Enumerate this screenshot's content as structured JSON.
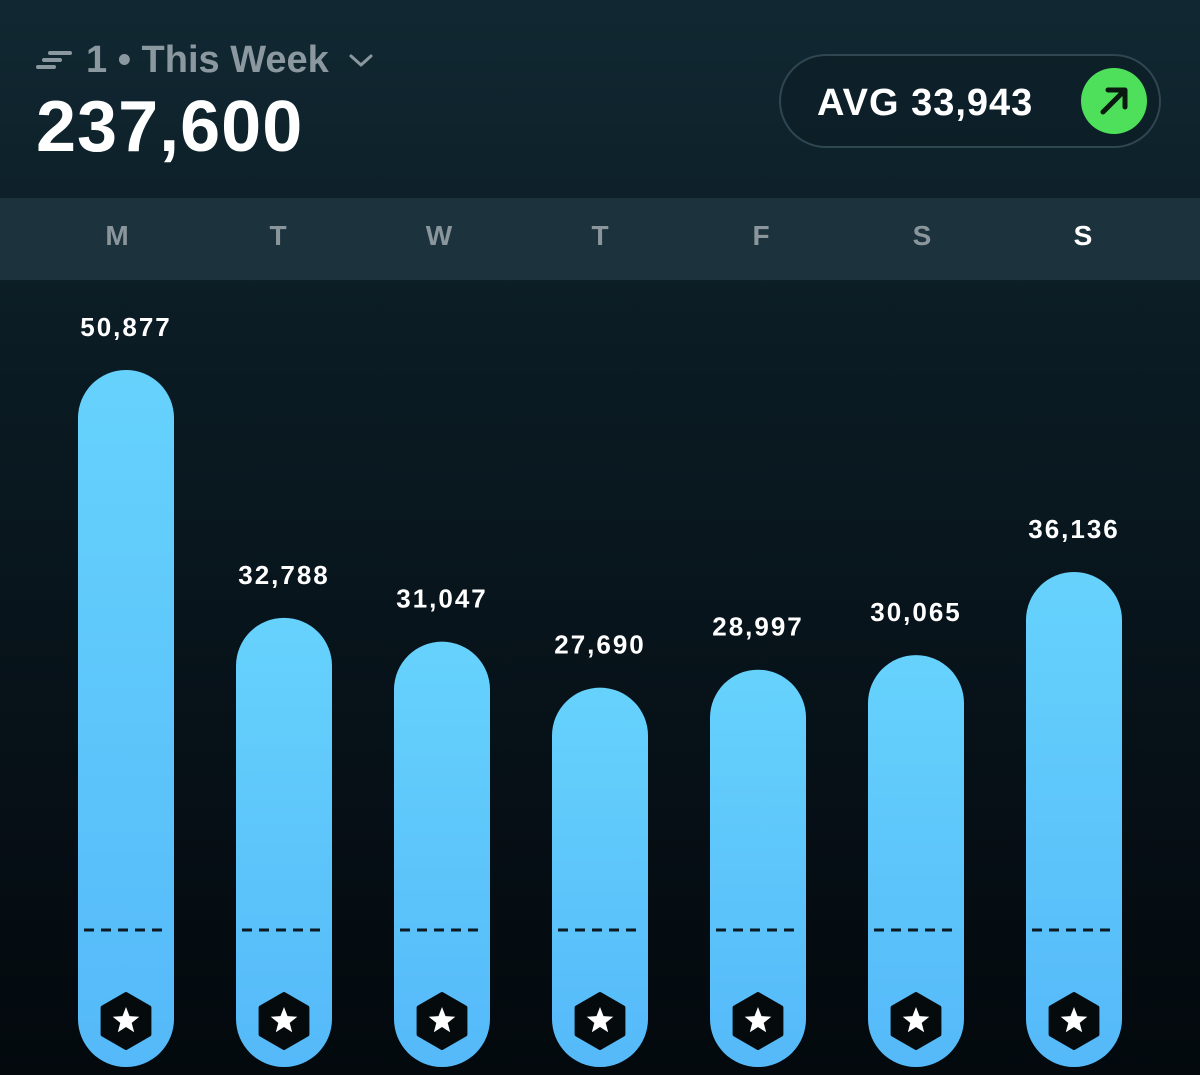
{
  "header": {
    "period_label": "1 • This Week",
    "total": "237,600",
    "avg_label": "AVG 33,943"
  },
  "icons": {
    "speed": "speed-lines-icon",
    "dropdown": "chevron-down-icon",
    "trend": "trend-up-arrow-icon",
    "badge": "star-hexagon-icon"
  },
  "colors": {
    "bar_top": "#66d2fc",
    "bar_bottom": "#55b9f9",
    "trend_green": "#4ee05a",
    "active_day": "#ffffff",
    "inactive_day": "#8a969c"
  },
  "days": [
    {
      "label": "M",
      "active": false
    },
    {
      "label": "T",
      "active": false
    },
    {
      "label": "W",
      "active": false
    },
    {
      "label": "T",
      "active": false
    },
    {
      "label": "F",
      "active": false
    },
    {
      "label": "S",
      "active": false
    },
    {
      "label": "S",
      "active": true
    }
  ],
  "chart_data": {
    "type": "bar",
    "categories": [
      "M",
      "T",
      "W",
      "T",
      "F",
      "S",
      "S"
    ],
    "values": [
      50877,
      32788,
      31047,
      27690,
      28997,
      30065,
      36136
    ],
    "value_labels": [
      "50,877",
      "32,788",
      "31,047",
      "27,690",
      "28,997",
      "30,065",
      "36,136"
    ],
    "reference_line": 10000,
    "grid": false,
    "legend": "none"
  }
}
